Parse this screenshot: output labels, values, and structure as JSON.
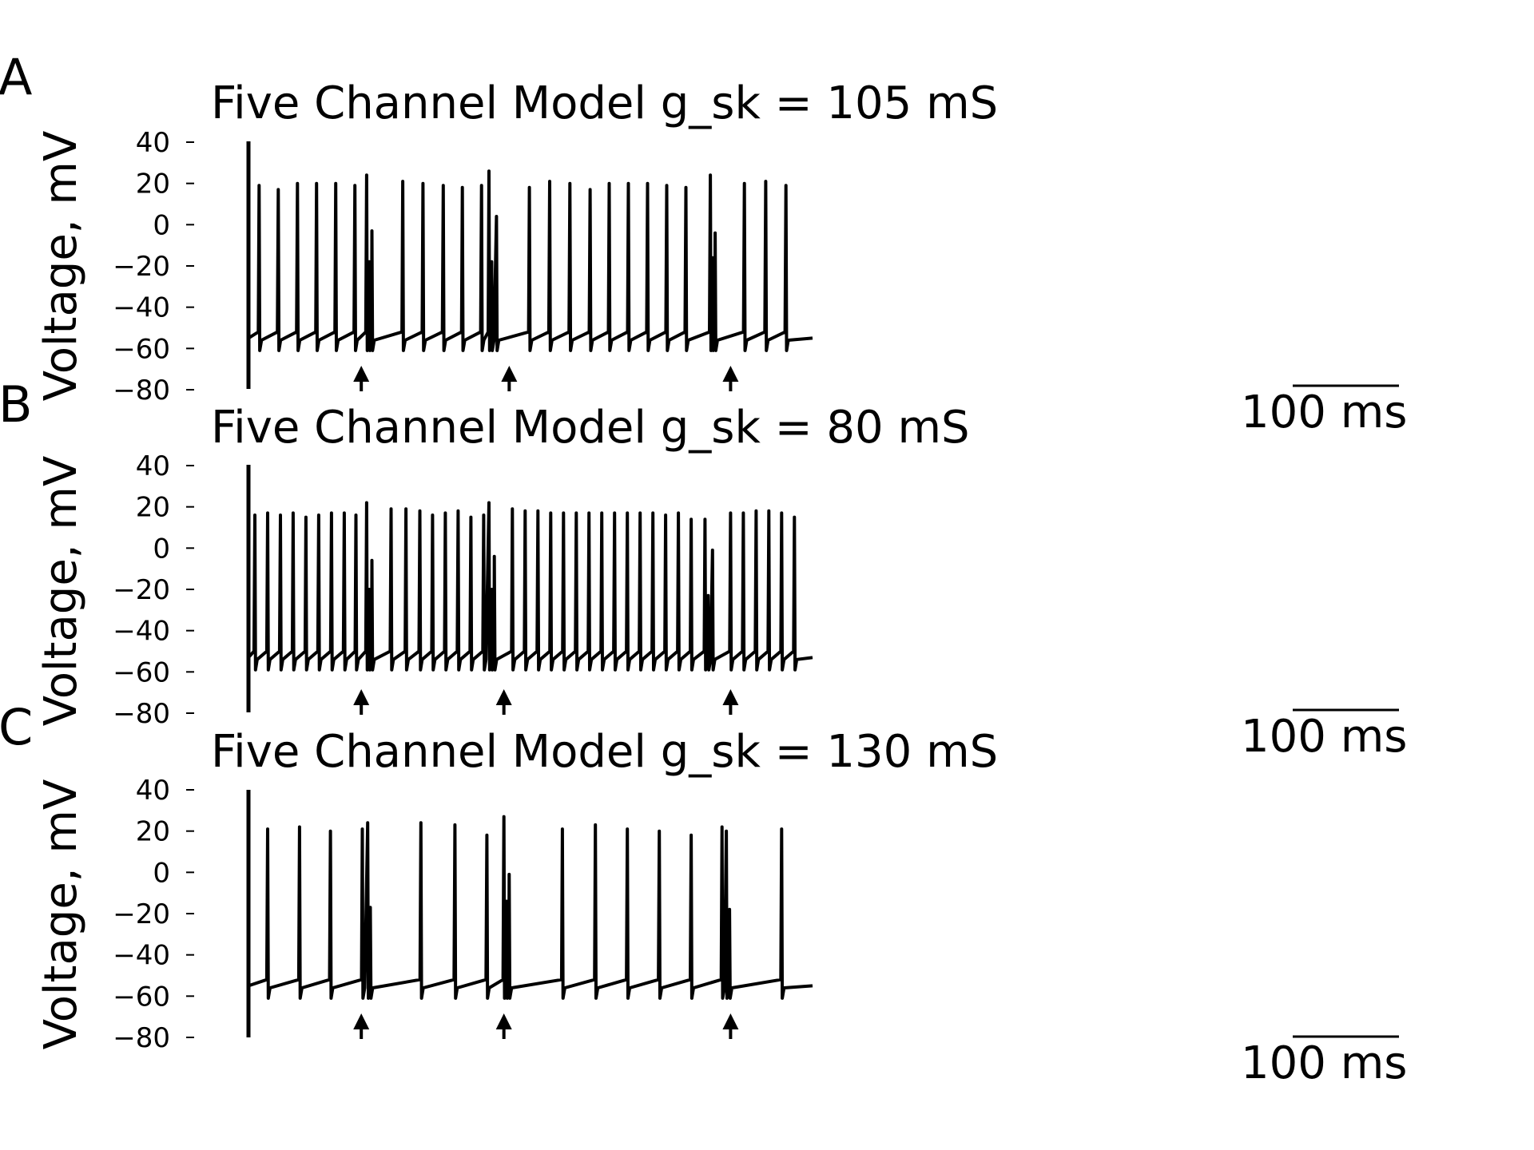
{
  "chart_data": [
    {
      "type": "line",
      "panel_label": "A",
      "title": "Five Channel Model g_sk = 105 mS",
      "ylabel": "Voltage, mV",
      "ylim": [
        -80,
        40
      ],
      "yticks": [
        40,
        20,
        0,
        -20,
        -40,
        -60,
        -80
      ],
      "ytick_labels": [
        "40",
        "20",
        "0",
        "−20",
        "−40",
        "−60",
        "−80"
      ],
      "xlim": [
        0,
        550
      ],
      "duration_ms": 530,
      "baseline_mV": -55,
      "spikes": [
        {
          "t": 10,
          "v": 19
        },
        {
          "t": 28,
          "v": 17
        },
        {
          "t": 46,
          "v": 20
        },
        {
          "t": 64,
          "v": 20
        },
        {
          "t": 82,
          "v": 20
        },
        {
          "t": 100,
          "v": 19
        },
        {
          "t": 111,
          "v": 24
        },
        {
          "t": 113.5,
          "v": -18
        },
        {
          "t": 116,
          "v": -3
        },
        {
          "t": 145,
          "v": 21
        },
        {
          "t": 164,
          "v": 20
        },
        {
          "t": 183,
          "v": 19
        },
        {
          "t": 201,
          "v": 18
        },
        {
          "t": 219,
          "v": 19
        },
        {
          "t": 226,
          "v": 26
        },
        {
          "t": 228.5,
          "v": -18
        },
        {
          "t": 233,
          "v": 4
        },
        {
          "t": 264,
          "v": 18
        },
        {
          "t": 283,
          "v": 21
        },
        {
          "t": 302,
          "v": 20
        },
        {
          "t": 321,
          "v": 17
        },
        {
          "t": 339,
          "v": 20
        },
        {
          "t": 357,
          "v": 20
        },
        {
          "t": 375,
          "v": 20
        },
        {
          "t": 393,
          "v": 19
        },
        {
          "t": 411,
          "v": 18
        },
        {
          "t": 434,
          "v": 24
        },
        {
          "t": 436,
          "v": -16
        },
        {
          "t": 438.5,
          "v": -4
        },
        {
          "t": 466,
          "v": 20
        },
        {
          "t": 486,
          "v": 21
        },
        {
          "t": 505,
          "v": 19
        }
      ],
      "stimulus_arrows_ms": [
        106,
        245,
        453
      ],
      "scale_bar": {
        "length_ms": 100,
        "label": "100 ms"
      }
    },
    {
      "type": "line",
      "panel_label": "B",
      "title": "Five Channel Model g_sk = 80 mS",
      "ylabel": "Voltage, mV",
      "ylim": [
        -80,
        40
      ],
      "yticks": [
        40,
        20,
        0,
        -20,
        -40,
        -60,
        -80
      ],
      "ytick_labels": [
        "40",
        "20",
        "0",
        "−20",
        "−40",
        "−60",
        "−80"
      ],
      "xlim": [
        0,
        550
      ],
      "duration_ms": 530,
      "baseline_mV": -53,
      "spikes": [
        {
          "t": 6,
          "v": 16
        },
        {
          "t": 18,
          "v": 17
        },
        {
          "t": 30,
          "v": 16
        },
        {
          "t": 42,
          "v": 17
        },
        {
          "t": 54,
          "v": 15
        },
        {
          "t": 66,
          "v": 16
        },
        {
          "t": 78,
          "v": 17
        },
        {
          "t": 90,
          "v": 17
        },
        {
          "t": 101,
          "v": 16
        },
        {
          "t": 111,
          "v": 22
        },
        {
          "t": 113.5,
          "v": -20
        },
        {
          "t": 116,
          "v": -6
        },
        {
          "t": 134,
          "v": 19
        },
        {
          "t": 148,
          "v": 19
        },
        {
          "t": 161,
          "v": 18
        },
        {
          "t": 173,
          "v": 16
        },
        {
          "t": 185,
          "v": 17
        },
        {
          "t": 197,
          "v": 18
        },
        {
          "t": 209,
          "v": 15
        },
        {
          "t": 221,
          "v": 16
        },
        {
          "t": 226,
          "v": 22
        },
        {
          "t": 228.5,
          "v": -20
        },
        {
          "t": 231,
          "v": -4
        },
        {
          "t": 248,
          "v": 19
        },
        {
          "t": 260,
          "v": 18
        },
        {
          "t": 272,
          "v": 18
        },
        {
          "t": 284,
          "v": 17
        },
        {
          "t": 296,
          "v": 17
        },
        {
          "t": 308,
          "v": 17
        },
        {
          "t": 320,
          "v": 17
        },
        {
          "t": 332,
          "v": 17
        },
        {
          "t": 344,
          "v": 17
        },
        {
          "t": 356,
          "v": 17
        },
        {
          "t": 368,
          "v": 17
        },
        {
          "t": 380,
          "v": 17
        },
        {
          "t": 392,
          "v": 16
        },
        {
          "t": 404,
          "v": 17
        },
        {
          "t": 416,
          "v": 14
        },
        {
          "t": 429,
          "v": 14
        },
        {
          "t": 432,
          "v": -23
        },
        {
          "t": 436,
          "v": -1
        },
        {
          "t": 453,
          "v": 17
        },
        {
          "t": 465,
          "v": 17
        },
        {
          "t": 477,
          "v": 18
        },
        {
          "t": 489,
          "v": 18
        },
        {
          "t": 501,
          "v": 17
        },
        {
          "t": 513,
          "v": 15
        }
      ],
      "stimulus_arrows_ms": [
        106,
        240,
        453
      ],
      "scale_bar": {
        "length_ms": 100,
        "label": "100 ms"
      }
    },
    {
      "type": "line",
      "panel_label": "C",
      "title": "Five Channel Model g_sk = 130 mS",
      "ylabel": "Voltage, mV",
      "ylim": [
        -80,
        40
      ],
      "yticks": [
        40,
        20,
        0,
        -20,
        -40,
        -60,
        -80
      ],
      "ytick_labels": [
        "40",
        "20",
        "0",
        "−20",
        "−40",
        "−60",
        "−80"
      ],
      "xlim": [
        0,
        550
      ],
      "duration_ms": 530,
      "baseline_mV": -55,
      "spikes": [
        {
          "t": 18,
          "v": 21
        },
        {
          "t": 48,
          "v": 22
        },
        {
          "t": 77,
          "v": 20
        },
        {
          "t": 107,
          "v": 21
        },
        {
          "t": 112,
          "v": 24
        },
        {
          "t": 114.5,
          "v": -17
        },
        {
          "t": 162,
          "v": 24
        },
        {
          "t": 194,
          "v": 23
        },
        {
          "t": 224,
          "v": 18
        },
        {
          "t": 240,
          "v": 27
        },
        {
          "t": 242.5,
          "v": -14
        },
        {
          "t": 245,
          "v": -1
        },
        {
          "t": 295,
          "v": 21
        },
        {
          "t": 326,
          "v": 23
        },
        {
          "t": 356,
          "v": 21
        },
        {
          "t": 386,
          "v": 20
        },
        {
          "t": 416,
          "v": 18
        },
        {
          "t": 445,
          "v": 22
        },
        {
          "t": 449,
          "v": 20
        },
        {
          "t": 452,
          "v": -18
        },
        {
          "t": 501,
          "v": 21
        }
      ],
      "stimulus_arrows_ms": [
        106,
        240,
        453
      ],
      "scale_bar": {
        "length_ms": 100,
        "label": "100 ms"
      }
    }
  ]
}
